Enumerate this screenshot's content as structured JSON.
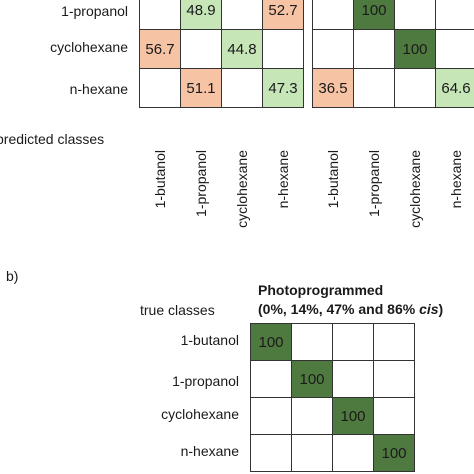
{
  "colors": {
    "dark_green": "#4f7a3f",
    "light_green": "#c6e6b8",
    "salmon": "#f6c3a5",
    "border": "#333333"
  },
  "labels": {
    "panel_b_tag": "b)",
    "predicted_classes": "predicted classes",
    "true_classes": "true classes",
    "photoprogrammed_line1": "Photoprogrammed",
    "photoprogrammed_line2_prefix": "(0%, 14%, 47% and 86% ",
    "photoprogrammed_line2_italic": "cis",
    "photoprogrammed_line2_suffix": ")"
  },
  "chart_data": [
    {
      "type": "heatmap",
      "panel": "a-left (partial)",
      "rows": [
        "1-propanol",
        "cyclohexane",
        "n-hexane"
      ],
      "columns": [
        "1-butanol",
        "1-propanol",
        "cyclohexane",
        "n-hexane"
      ],
      "cells": [
        {
          "row": 0,
          "col": 1,
          "value": "48.9",
          "color": "light_green"
        },
        {
          "row": 0,
          "col": 3,
          "value": "52.7",
          "color": "salmon"
        },
        {
          "row": 1,
          "col": 0,
          "value": "56.7",
          "color": "salmon"
        },
        {
          "row": 1,
          "col": 2,
          "value": "44.8",
          "color": "light_green"
        },
        {
          "row": 2,
          "col": 1,
          "value": "51.1",
          "color": "salmon"
        },
        {
          "row": 2,
          "col": 3,
          "value": "47.3",
          "color": "light_green"
        }
      ]
    },
    {
      "type": "heatmap",
      "panel": "a-right (partial)",
      "rows": [
        "1-propanol",
        "cyclohexane",
        "n-hexane"
      ],
      "columns": [
        "1-butanol",
        "1-propanol",
        "cyclohexane",
        "n-hexane"
      ],
      "cells": [
        {
          "row": 0,
          "col": 1,
          "value": "100",
          "color": "dark_green"
        },
        {
          "row": 1,
          "col": 2,
          "value": "100",
          "color": "dark_green"
        },
        {
          "row": 2,
          "col": 0,
          "value": "36.5",
          "color": "salmon"
        },
        {
          "row": 2,
          "col": 3,
          "value": "64.6",
          "color": "light_green"
        }
      ]
    },
    {
      "type": "heatmap",
      "panel": "b",
      "rows": [
        "1-butanol",
        "1-propanol",
        "cyclohexane",
        "n-hexane"
      ],
      "columns": [
        "1-butanol",
        "1-propanol",
        "cyclohexane",
        "n-hexane"
      ],
      "cells": [
        {
          "row": 0,
          "col": 0,
          "value": "100",
          "color": "dark_green"
        },
        {
          "row": 1,
          "col": 1,
          "value": "100",
          "color": "dark_green"
        },
        {
          "row": 2,
          "col": 2,
          "value": "100",
          "color": "dark_green"
        },
        {
          "row": 3,
          "col": 3,
          "value": "100",
          "color": "dark_green"
        }
      ]
    }
  ]
}
